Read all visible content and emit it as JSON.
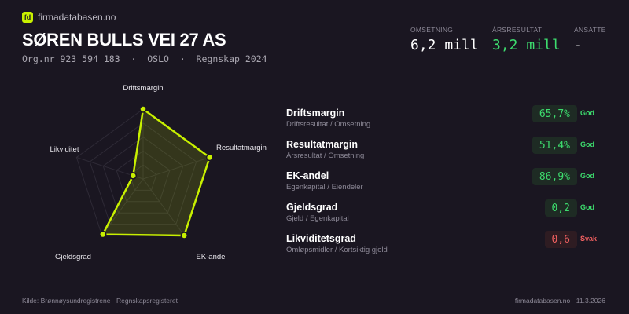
{
  "brand": {
    "logo": "fd",
    "name": "firmadatabasen.no"
  },
  "company": {
    "name": "SØREN BULLS VEI 27 AS",
    "subtitle": "Org.nr 923 594 183  ·  OSLO  ·  Regnskap 2024"
  },
  "kpis": [
    {
      "label": "OMSETNING",
      "value": "6,2 mill",
      "color": "#ffffff"
    },
    {
      "label": "ÅRSRESULTAT",
      "value": "3,2 mill",
      "color": "#3ddc6e"
    },
    {
      "label": "ANSATTE",
      "value": "-",
      "color": "#ffffff"
    }
  ],
  "radar": {
    "axes": [
      "Driftsmargin",
      "Resultatmargin",
      "EK-andel",
      "Gjeldsgrad",
      "Likviditet"
    ],
    "scores": [
      1.0,
      1.0,
      1.0,
      0.98,
      0.15
    ],
    "rings": 5,
    "accent": "#c8f000"
  },
  "metrics": [
    {
      "name": "Driftsmargin",
      "desc": "Driftsresultat / Omsetning",
      "value": "65,7%",
      "status": "God"
    },
    {
      "name": "Resultatmargin",
      "desc": "Årsresultat / Omsetning",
      "value": "51,4%",
      "status": "God"
    },
    {
      "name": "EK-andel",
      "desc": "Egenkapital / Eiendeler",
      "value": "86,9%",
      "status": "God"
    },
    {
      "name": "Gjeldsgrad",
      "desc": "Gjeld / Egenkapital",
      "value": "0,2",
      "status": "God"
    },
    {
      "name": "Likviditetsgrad",
      "desc": "Omløpsmidler / Kortsiktig gjeld",
      "value": "0,6",
      "status": "Svak"
    }
  ],
  "colors": {
    "good": "#3ddc6e",
    "good_bg": "#1e2b24",
    "weak": "#f06060",
    "weak_bg": "#2e1c22"
  },
  "footer": {
    "source": "Kilde: Brønnøysundregistrene · Regnskapsregisteret",
    "site": "firmadatabasen.no · 11.3.2026"
  }
}
